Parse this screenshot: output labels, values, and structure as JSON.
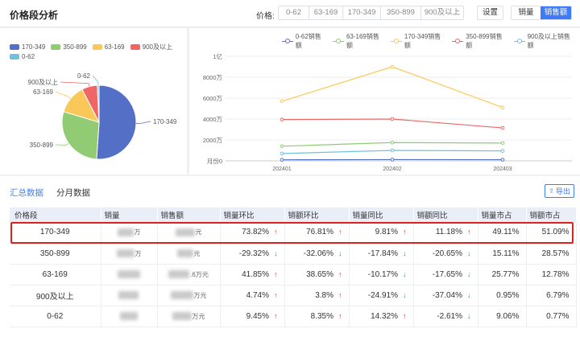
{
  "header": {
    "title": "价格段分析",
    "price_label": "价格:",
    "price_ranges": [
      "0-62",
      "63-169",
      "170-349",
      "350-899",
      "900及以上"
    ],
    "settings_label": "设置",
    "toggle": {
      "volume_label": "销量",
      "sales_label": "销售额",
      "active": "销售额"
    }
  },
  "pie_chart": {
    "legend": [
      {
        "name": "170-349",
        "color": "#5470c6"
      },
      {
        "name": "350-899",
        "color": "#91cc75"
      },
      {
        "name": "63-169",
        "color": "#fac858"
      },
      {
        "name": "900及以上",
        "color": "#ee6666"
      },
      {
        "name": "0-62",
        "color": "#73c0de"
      }
    ],
    "labels": [
      "170-349",
      "350-899",
      "63-169",
      "900及以上",
      "0-62"
    ]
  },
  "line_chart": {
    "legend": [
      {
        "name": "0-62销售额",
        "color": "#5470c6"
      },
      {
        "name": "63-169销售额",
        "color": "#91cc75"
      },
      {
        "name": "170-349销售额",
        "color": "#fac858"
      },
      {
        "name": "350-899销售额",
        "color": "#ee6666"
      },
      {
        "name": "900及以上销售额",
        "color": "#73c0de"
      }
    ],
    "y_ticks": [
      "月份0",
      "2000万",
      "4000万",
      "6000万",
      "8000万",
      "1亿"
    ]
  },
  "chart_data": [
    {
      "type": "pie",
      "categories": [
        "170-349",
        "350-899",
        "63-169",
        "900及以上",
        "0-62"
      ],
      "values": [
        51.09,
        28.57,
        12.78,
        6.79,
        0.77
      ],
      "colors": [
        "#5470c6",
        "#91cc75",
        "#fac858",
        "#ee6666",
        "#73c0de"
      ],
      "legend_position": "top-left"
    },
    {
      "type": "line",
      "x": [
        "202401",
        "202402",
        "202403"
      ],
      "ylim": [
        0,
        100000000
      ],
      "y_ticks": [
        "月份0",
        "2000万",
        "4000万",
        "6000万",
        "8000万",
        "1亿"
      ],
      "series": [
        {
          "name": "0-62销售额",
          "values": [
            1000000,
            1200000,
            1100000
          ],
          "color": "#5470c6"
        },
        {
          "name": "63-169销售额",
          "values": [
            14000000,
            17500000,
            17000000
          ],
          "color": "#91cc75"
        },
        {
          "name": "170-349销售额",
          "values": [
            57000000,
            90000000,
            51000000
          ],
          "color": "#fac858"
        },
        {
          "name": "350-899销售额",
          "values": [
            39500000,
            40000000,
            31500000
          ],
          "color": "#ee6666"
        },
        {
          "name": "900及以上销售额",
          "values": [
            7000000,
            10000000,
            9500000
          ],
          "color": "#73c0de"
        }
      ],
      "grid": true,
      "legend_position": "top"
    }
  ],
  "table": {
    "tabs": [
      "汇总数据",
      "分月数据"
    ],
    "active_tab": "汇总数据",
    "export_label": "导出",
    "columns": [
      "价格段",
      "销量",
      "销售额",
      "销量环比",
      "销额环比",
      "销量同比",
      "销额同比",
      "销量市占",
      "销额市占"
    ],
    "rows": [
      {
        "segment": "170-349",
        "volume_visible": "万",
        "sales_visible": "元",
        "vol_mom": "73.82%",
        "vol_mom_dir": "up",
        "sales_mom": "76.81%",
        "sales_mom_dir": "up",
        "vol_yoy": "9.81%",
        "vol_yoy_dir": "up",
        "sales_yoy": "11.18%",
        "sales_yoy_dir": "up",
        "vol_share": "49.11%",
        "sales_share": "51.09%"
      },
      {
        "segment": "350-899",
        "volume_visible": "万",
        "sales_visible": "元",
        "vol_mom": "-29.32%",
        "vol_mom_dir": "down",
        "sales_mom": "-32.06%",
        "sales_mom_dir": "down",
        "vol_yoy": "-17.84%",
        "vol_yoy_dir": "down",
        "sales_yoy": "-20.65%",
        "sales_yoy_dir": "down",
        "vol_share": "15.11%",
        "sales_share": "28.57%"
      },
      {
        "segment": "63-169",
        "volume_visible": "",
        "sales_visible": ".6万元",
        "vol_mom": "41.85%",
        "vol_mom_dir": "up",
        "sales_mom": "38.65%",
        "sales_mom_dir": "up",
        "vol_yoy": "-10.17%",
        "vol_yoy_dir": "down",
        "sales_yoy": "-17.65%",
        "sales_yoy_dir": "down",
        "vol_share": "25.77%",
        "sales_share": "12.78%"
      },
      {
        "segment": "900及以上",
        "volume_visible": "",
        "sales_visible": "万元",
        "vol_mom": "4.74%",
        "vol_mom_dir": "up",
        "sales_mom": "3.8%",
        "sales_mom_dir": "up",
        "vol_yoy": "-24.91%",
        "vol_yoy_dir": "down",
        "sales_yoy": "-37.04%",
        "sales_yoy_dir": "down",
        "vol_share": "0.95%",
        "sales_share": "6.79%"
      },
      {
        "segment": "0-62",
        "volume_visible": "",
        "sales_visible": "万元",
        "vol_mom": "9.45%",
        "vol_mom_dir": "up",
        "sales_mom": "8.35%",
        "sales_mom_dir": "up",
        "vol_yoy": "14.32%",
        "vol_yoy_dir": "up",
        "sales_yoy": "-2.61%",
        "sales_yoy_dir": "down",
        "vol_share": "9.06%",
        "sales_share": "0.77%"
      }
    ]
  }
}
